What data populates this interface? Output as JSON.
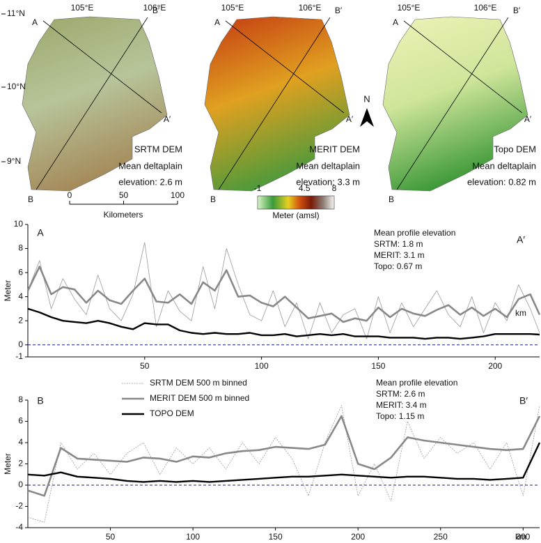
{
  "maps": [
    {
      "title": "SRTM DEM",
      "note": [
        "Mean deltaplain",
        "elevation: 2.6 m"
      ],
      "colors": [
        "#9aa86a",
        "#b7c49a",
        "#a58a5a"
      ]
    },
    {
      "title": "MERIT DEM",
      "note": [
        "Mean deltaplain",
        "elevation: 3.3 m"
      ],
      "colors": [
        "#c43a12",
        "#e0a020",
        "#4f9a3a"
      ]
    },
    {
      "title": "Topo DEM",
      "note": [
        "Mean deltaplain",
        "elevation: 0.82 m"
      ],
      "colors": [
        "#eef2b8",
        "#cfe59a",
        "#3f9a3a"
      ]
    }
  ],
  "map_labels": {
    "lon": [
      "105°E",
      "106°E"
    ],
    "lat": [
      "11°N",
      "10°N",
      "9°N"
    ],
    "points": [
      "A",
      "A′",
      "B",
      "B′"
    ],
    "north": "N"
  },
  "scale_bar": {
    "ticks": [
      0,
      50,
      100
    ],
    "label": "Kilometers"
  },
  "color_bar": {
    "ticks": [
      -1,
      4.5,
      8
    ],
    "label": "Meter (amsl)"
  },
  "chart_data": [
    {
      "type": "line",
      "ylabel": "Meter",
      "xlabel": "km",
      "start_label": "A",
      "end_label": "A′",
      "annotation": [
        "Mean profile elevation",
        "SRTM: 1.8 m",
        "MERIT: 3.1 m",
        "Topo: 0.67 m"
      ],
      "xlim": [
        0,
        219
      ],
      "xticks": [
        50,
        100,
        150,
        200
      ],
      "ylim": [
        -1,
        10
      ],
      "yticks": [
        -1,
        0,
        2,
        4,
        6,
        8,
        10
      ],
      "reference_line": 0,
      "reference_color": "#1a1a80",
      "x": [
        0,
        5,
        10,
        15,
        20,
        25,
        30,
        35,
        40,
        45,
        50,
        55,
        60,
        65,
        70,
        75,
        80,
        85,
        90,
        95,
        100,
        105,
        110,
        115,
        120,
        125,
        130,
        135,
        140,
        145,
        150,
        155,
        160,
        165,
        170,
        175,
        180,
        185,
        190,
        195,
        200,
        205,
        210,
        215,
        219
      ],
      "series": [
        {
          "color": "#999999",
          "values": [
            4.5,
            7.0,
            3.0,
            5.5,
            3.8,
            2.5,
            5.8,
            3.0,
            2.0,
            4.2,
            8.5,
            1.5,
            4.5,
            2.8,
            2.0,
            6.5,
            3.0,
            8.0,
            5.0,
            2.5,
            2.0,
            4.5,
            1.5,
            3.5,
            0.5,
            3.5,
            1.0,
            2.5,
            3.0,
            0.5,
            4.0,
            1.0,
            3.5,
            1.5,
            3.0,
            4.5,
            2.5,
            1.5,
            4.0,
            1.0,
            3.5,
            2.0,
            5.0,
            3.0,
            1.0
          ]
        },
        {
          "color": "#888888",
          "values": [
            4.5,
            6.5,
            4.2,
            4.8,
            4.6,
            3.5,
            4.5,
            3.7,
            3.4,
            4.5,
            5.5,
            3.6,
            3.5,
            4.2,
            3.4,
            5.2,
            4.5,
            6.2,
            4.0,
            4.1,
            3.5,
            3.2,
            4.0,
            3.1,
            2.2,
            2.4,
            2.6,
            1.9,
            2.2,
            2.0,
            3.1,
            2.3,
            3.0,
            2.6,
            2.4,
            2.9,
            3.3,
            2.5,
            3.1,
            2.4,
            3.0,
            2.3,
            3.8,
            4.2,
            2.5
          ]
        },
        {
          "color": "#000000",
          "values": [
            3.0,
            2.7,
            2.3,
            2.0,
            1.9,
            1.8,
            2.0,
            1.8,
            1.5,
            1.3,
            1.8,
            1.7,
            1.7,
            1.2,
            1.0,
            0.9,
            1.0,
            0.9,
            0.9,
            1.0,
            0.8,
            0.8,
            0.9,
            0.7,
            0.8,
            0.9,
            0.8,
            0.9,
            0.7,
            0.7,
            0.7,
            0.6,
            0.6,
            0.6,
            0.5,
            0.6,
            0.6,
            0.5,
            0.6,
            0.7,
            0.9,
            0.9,
            0.9,
            0.9,
            0.85
          ]
        }
      ]
    },
    {
      "type": "line",
      "ylabel": "Meter",
      "xlabel": "km",
      "start_label": "B",
      "end_label": "B′",
      "annotation": [
        "Mean profile elevation",
        "SRTM: 2.6 m",
        "MERIT: 3.4 m",
        "Topo: 1.15 m"
      ],
      "xlim": [
        0,
        310
      ],
      "xticks": [
        50,
        100,
        150,
        200,
        250,
        300
      ],
      "ylim": [
        -4,
        8
      ],
      "yticks": [
        -4,
        -2,
        0,
        2,
        4,
        6,
        8
      ],
      "reference_line": 0,
      "reference_color": "#1a1a80",
      "legend": true,
      "x": [
        0,
        10,
        20,
        30,
        40,
        50,
        60,
        70,
        80,
        90,
        100,
        110,
        120,
        130,
        140,
        150,
        160,
        170,
        180,
        190,
        200,
        210,
        220,
        230,
        240,
        250,
        260,
        270,
        280,
        290,
        300,
        310
      ],
      "series": [
        {
          "name": "SRTM DEM 500 m binned",
          "color": "#999999",
          "values": [
            -3,
            -3.5,
            4.0,
            1.5,
            3.0,
            1.0,
            3.0,
            4.0,
            1.0,
            3.5,
            2.0,
            3.5,
            1.5,
            4.0,
            2.0,
            4.5,
            2.5,
            -1.0,
            4.0,
            7.5,
            -1.0,
            2.0,
            -1.5,
            6.0,
            2.5,
            4.5,
            3.0,
            4.0,
            1.5,
            4.0,
            -1.0,
            7.5
          ]
        },
        {
          "name": "MERIT DEM 500 m binned",
          "color": "#888888",
          "values": [
            -0.5,
            -1.0,
            3.5,
            2.5,
            2.4,
            2.3,
            2.2,
            2.6,
            2.5,
            2.2,
            2.7,
            2.6,
            3.0,
            3.2,
            3.3,
            3.6,
            3.5,
            3.4,
            3.8,
            6.5,
            2.0,
            1.5,
            2.6,
            4.5,
            4.2,
            4.0,
            3.8,
            3.6,
            3.4,
            3.3,
            3.4,
            6.5
          ]
        },
        {
          "name": "TOPO DEM",
          "color": "#000000",
          "values": [
            1.0,
            0.9,
            1.2,
            0.8,
            0.7,
            0.6,
            0.4,
            0.3,
            0.4,
            0.3,
            0.4,
            0.3,
            0.4,
            0.5,
            0.6,
            0.7,
            0.8,
            0.8,
            0.9,
            1.0,
            0.9,
            0.8,
            0.7,
            0.8,
            0.8,
            0.7,
            0.6,
            0.6,
            0.5,
            0.6,
            0.7,
            4.0
          ]
        }
      ]
    }
  ]
}
